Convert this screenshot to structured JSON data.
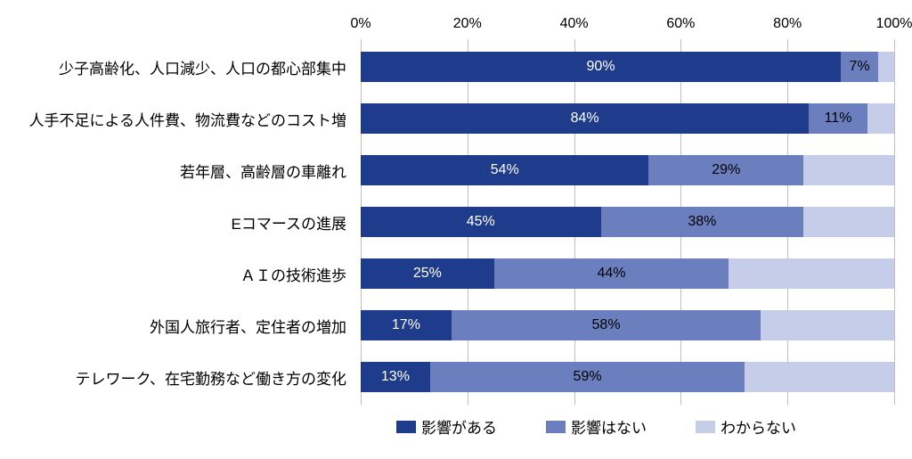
{
  "chart": {
    "type": "stacked-bar-horizontal",
    "background_color": "#ffffff",
    "grid_color": "#bfbfbf",
    "label_fontsize": 17,
    "value_fontsize": 16,
    "tick_fontsize": 16,
    "xlim": [
      0,
      100
    ],
    "xtick_step": 20,
    "xtick_suffix": "%",
    "xticks": [
      "0%",
      "20%",
      "40%",
      "60%",
      "80%",
      "100%"
    ],
    "series": [
      {
        "key": "has_impact",
        "label": "影響がある",
        "color": "#1f3b8c",
        "text_color": "#ffffff"
      },
      {
        "key": "no_impact",
        "label": "影響はない",
        "color": "#6b7fbf",
        "text_color": "#000000"
      },
      {
        "key": "dont_know",
        "label": "わからない",
        "color": "#c5cde8",
        "text_color": "#000000"
      }
    ],
    "value_label_min_percent": 7,
    "categories": [
      {
        "label": "少子高齢化、人口減少、人口の都心部集中",
        "segments": {
          "has_impact": 90,
          "no_impact": 7,
          "dont_know": 3
        },
        "display": {
          "has_impact": "90%",
          "no_impact": "7%"
        }
      },
      {
        "label": "人手不足による人件費、物流費などのコスト増",
        "segments": {
          "has_impact": 84,
          "no_impact": 11,
          "dont_know": 5
        },
        "display": {
          "has_impact": "84%",
          "no_impact": "11%"
        }
      },
      {
        "label": "若年層、高齢層の車離れ",
        "segments": {
          "has_impact": 54,
          "no_impact": 29,
          "dont_know": 17
        },
        "display": {
          "has_impact": "54%",
          "no_impact": "29%"
        }
      },
      {
        "label": "Eコマースの進展",
        "segments": {
          "has_impact": 45,
          "no_impact": 38,
          "dont_know": 17
        },
        "display": {
          "has_impact": "45%",
          "no_impact": "38%"
        }
      },
      {
        "label": "ＡＩの技術進歩",
        "segments": {
          "has_impact": 25,
          "no_impact": 44,
          "dont_know": 31
        },
        "display": {
          "has_impact": "25%",
          "no_impact": "44%"
        }
      },
      {
        "label": "外国人旅行者、定住者の増加",
        "segments": {
          "has_impact": 17,
          "no_impact": 58,
          "dont_know": 25
        },
        "display": {
          "has_impact": "17%",
          "no_impact": "58%"
        }
      },
      {
        "label": "テレワーク、在宅勤務など働き方の変化",
        "segments": {
          "has_impact": 13,
          "no_impact": 59,
          "dont_know": 28
        },
        "display": {
          "has_impact": "13%",
          "no_impact": "59%"
        }
      }
    ]
  }
}
